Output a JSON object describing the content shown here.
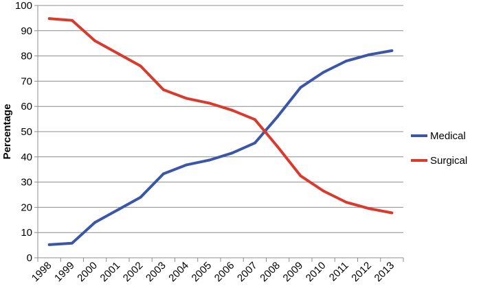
{
  "chart_data": {
    "type": "line",
    "title": "",
    "xlabel": "",
    "ylabel": "Percentage",
    "ylim": [
      0,
      100
    ],
    "yticks": [
      0,
      10,
      20,
      30,
      40,
      50,
      60,
      70,
      80,
      90,
      100
    ],
    "categories": [
      "1998",
      "1999",
      "2000",
      "2001",
      "2002",
      "2003",
      "2004",
      "2005",
      "2006",
      "2007",
      "2008",
      "2009",
      "2010",
      "2011",
      "2012",
      "2013"
    ],
    "grid": true,
    "legend_position": "right",
    "series": [
      {
        "name": "Medical",
        "color": "#3a56a8",
        "values": [
          5.2,
          5.8,
          14.0,
          19.0,
          24.0,
          33.3,
          36.8,
          38.7,
          41.5,
          45.5,
          56.0,
          67.5,
          73.5,
          78.0,
          80.5,
          82.1
        ]
      },
      {
        "name": "Surgical",
        "color": "#d93a2b",
        "values": [
          94.8,
          94.1,
          86.0,
          81.0,
          76.0,
          66.6,
          63.2,
          61.3,
          58.5,
          54.8,
          44.0,
          32.5,
          26.5,
          22.0,
          19.5,
          17.8
        ]
      }
    ]
  }
}
